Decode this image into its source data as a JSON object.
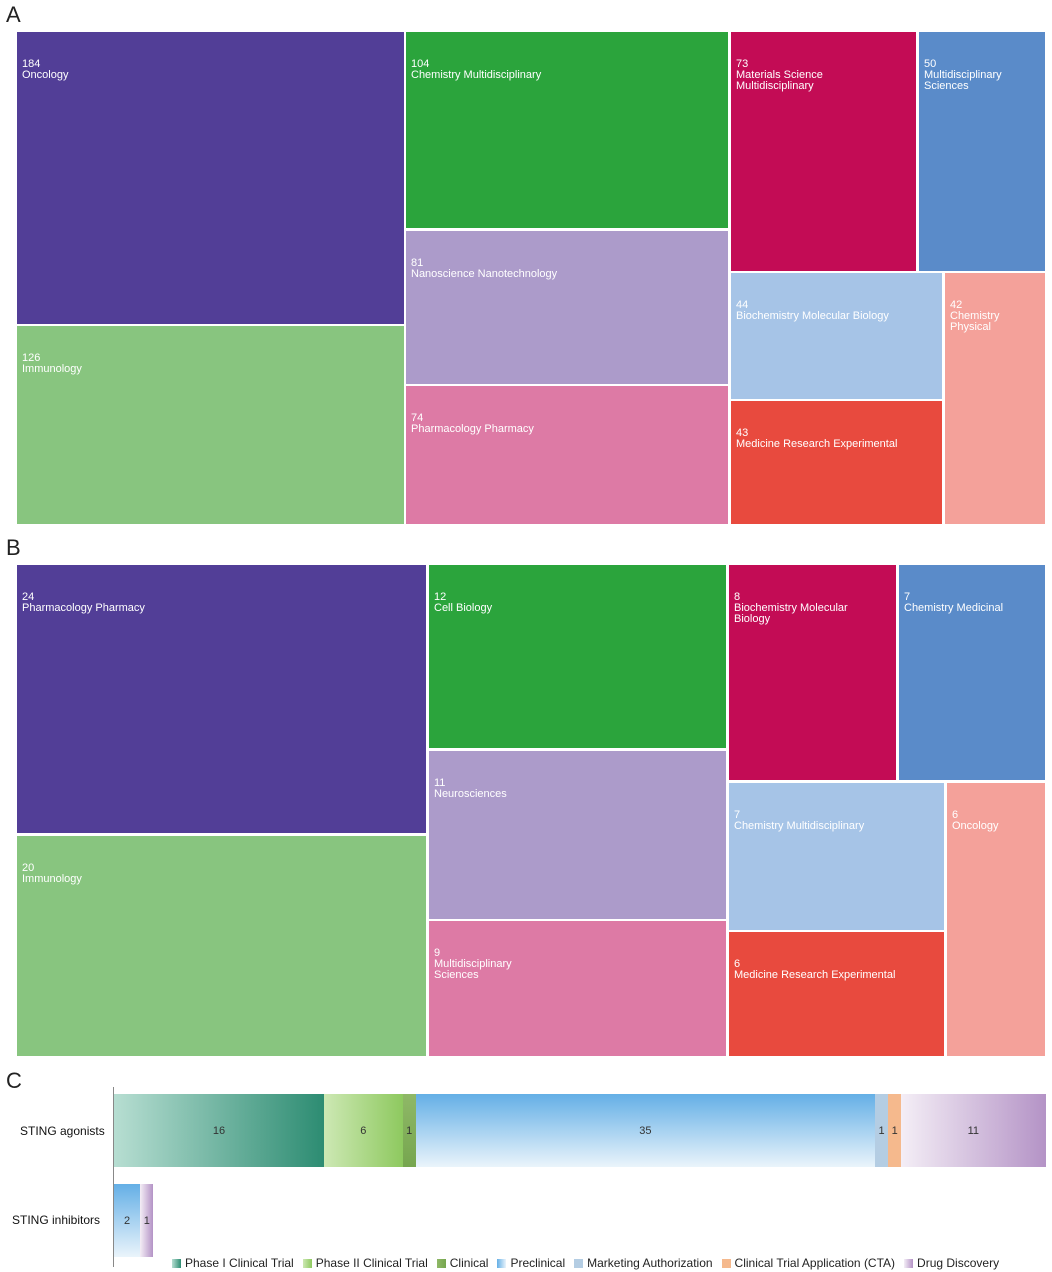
{
  "chart_data": [
    {
      "type": "treemap",
      "panel": "A",
      "cells": [
        {
          "count": "184",
          "label": "Oncology",
          "color": "#523e97"
        },
        {
          "count": "126",
          "label": "Immunology",
          "color": "#88c57f"
        },
        {
          "count": "104",
          "label": "Chemistry Multidisciplinary",
          "color": "#2ba43c"
        },
        {
          "count": "81",
          "label": "Nanoscience Nanotechnology",
          "color": "#ac9bca"
        },
        {
          "count": "74",
          "label": "Pharmacology Pharmacy",
          "color": "#dd7aa5"
        },
        {
          "count": "73",
          "label": "Materials Science Multidisciplinary",
          "color": "#c30c55"
        },
        {
          "count": "50",
          "label": "Multidisciplinary Sciences",
          "color": "#5a8bc9"
        },
        {
          "count": "44",
          "label": "Biochemistry Molecular Biology",
          "color": "#a6c4e7"
        },
        {
          "count": "43",
          "label": "Medicine Research Experimental",
          "color": "#e84a3e"
        },
        {
          "count": "42",
          "label": "Chemistry Physical",
          "color": "#f4a19a"
        }
      ]
    },
    {
      "type": "treemap",
      "panel": "B",
      "cells": [
        {
          "count": "24",
          "label": "Pharmacology Pharmacy",
          "color": "#523e97"
        },
        {
          "count": "20",
          "label": "Immunology",
          "color": "#88c57f"
        },
        {
          "count": "12",
          "label": "Cell Biology",
          "color": "#2ba43c"
        },
        {
          "count": "11",
          "label": "Neurosciences",
          "color": "#ac9bca"
        },
        {
          "count": "9",
          "label": "Multidisciplinary Sciences",
          "color": "#dd7aa5"
        },
        {
          "count": "8",
          "label": "Biochemistry Molecular Biology",
          "color": "#c30c55"
        },
        {
          "count": "7",
          "label": "Chemistry Medicinal",
          "color": "#5a8bc9"
        },
        {
          "count": "7",
          "label": "Chemistry Multidisciplinary",
          "color": "#a6c4e7"
        },
        {
          "count": "6",
          "label": "Medicine Research Experimental",
          "color": "#e84a3e"
        },
        {
          "count": "6",
          "label": "Oncology",
          "color": "#f4a19a"
        }
      ]
    },
    {
      "type": "bar",
      "panel": "C",
      "orientation": "horizontal-stacked",
      "categories": [
        "STING agonists",
        "STING inhibitors"
      ],
      "series": [
        {
          "name": "Phase I Clinical Trial",
          "values": [
            16,
            0
          ],
          "color_start": "#b7ded2",
          "color_end": "#2d8c72"
        },
        {
          "name": "Phase II Clinical Trial",
          "values": [
            6,
            0
          ],
          "color_start": "#cde8b4",
          "color_end": "#8ec95f"
        },
        {
          "name": "Clinical",
          "values": [
            1,
            0
          ],
          "color_start": "#8fb867",
          "color_end": "#76a64f"
        },
        {
          "name": "Preclinical",
          "values": [
            35,
            2
          ],
          "color_start": "#64afe6",
          "color_end": "#eaf4fb"
        },
        {
          "name": "Marketing Authorization",
          "values": [
            1,
            0
          ],
          "color_start": "#b4cde3",
          "color_end": "#b4cde3"
        },
        {
          "name": "Clinical Trial Application (CTA)",
          "values": [
            1,
            0
          ],
          "color_start": "#f5b98d",
          "color_end": "#f5b98d"
        },
        {
          "name": "Drug Discovery",
          "values": [
            11,
            1
          ],
          "color_start": "#f4eef6",
          "color_end": "#b493c6"
        }
      ]
    }
  ],
  "panel_letters": {
    "a": "A",
    "b": "B",
    "c": "C"
  }
}
